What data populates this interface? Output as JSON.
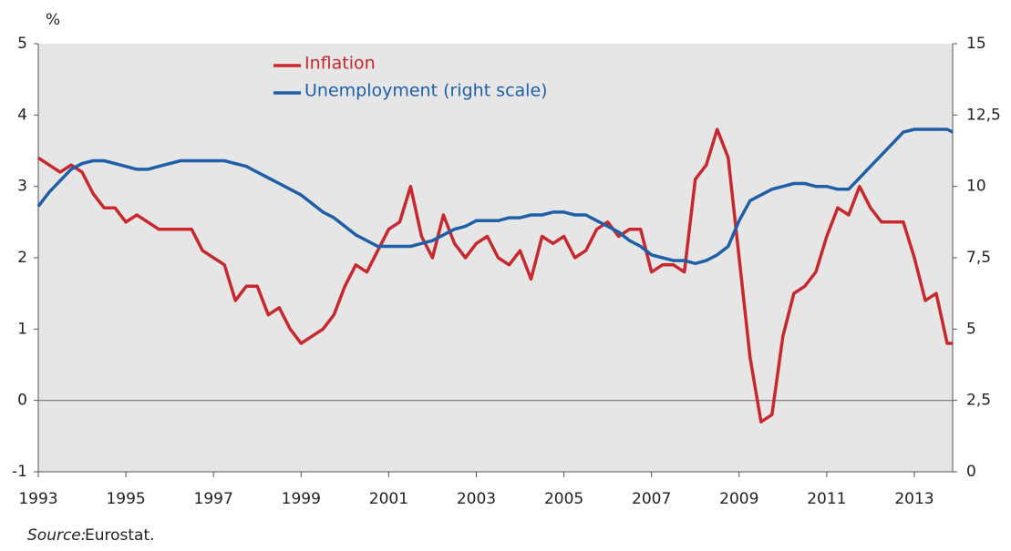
{
  "chart_data": {
    "type": "line",
    "y_unit_label": "%",
    "source_label": "Source:",
    "source": "Eurostat.",
    "x": [
      1993,
      1993.25,
      1993.5,
      1993.75,
      1994,
      1994.25,
      1994.5,
      1994.75,
      1995,
      1995.25,
      1995.5,
      1995.75,
      1996,
      1996.25,
      1996.5,
      1996.75,
      1997,
      1997.25,
      1997.5,
      1997.75,
      1998,
      1998.25,
      1998.5,
      1998.75,
      1999,
      1999.25,
      1999.5,
      1999.75,
      2000,
      2000.25,
      2000.5,
      2000.75,
      2001,
      2001.25,
      2001.5,
      2001.75,
      2002,
      2002.25,
      2002.5,
      2002.75,
      2003,
      2003.25,
      2003.5,
      2003.75,
      2004,
      2004.25,
      2004.5,
      2004.75,
      2005,
      2005.25,
      2005.5,
      2005.75,
      2006,
      2006.25,
      2006.5,
      2006.75,
      2007,
      2007.25,
      2007.5,
      2007.75,
      2008,
      2008.25,
      2008.5,
      2008.75,
      2009,
      2009.25,
      2009.5,
      2009.75,
      2010,
      2010.25,
      2010.5,
      2010.75,
      2011,
      2011.25,
      2011.5,
      2011.75,
      2012,
      2012.25,
      2012.5,
      2012.75,
      2013,
      2013.25,
      2013.5,
      2013.75,
      2013.875
    ],
    "series": [
      {
        "name": "Inflation",
        "color": "#c8282d",
        "values": [
          3.4,
          3.3,
          3.2,
          3.3,
          3.2,
          2.9,
          2.7,
          2.7,
          2.5,
          2.6,
          2.5,
          2.4,
          2.4,
          2.4,
          2.4,
          2.1,
          2.0,
          1.9,
          1.4,
          1.6,
          1.6,
          1.2,
          1.3,
          1.0,
          0.8,
          0.9,
          1.0,
          1.2,
          1.6,
          1.9,
          1.8,
          2.1,
          2.4,
          2.5,
          3.0,
          2.3,
          2.0,
          2.6,
          2.2,
          2.0,
          2.2,
          2.3,
          2.0,
          1.9,
          2.1,
          1.7,
          2.3,
          2.2,
          2.3,
          2.0,
          2.1,
          2.4,
          2.5,
          2.3,
          2.4,
          2.4,
          1.8,
          1.9,
          1.9,
          1.8,
          3.1,
          3.3,
          3.8,
          3.4,
          2.0,
          0.6,
          -0.3,
          -0.2,
          0.9,
          1.5,
          1.6,
          1.8,
          2.3,
          2.7,
          2.6,
          3.0,
          2.7,
          2.5,
          2.5,
          2.5,
          2.0,
          1.4,
          1.5,
          0.8,
          0.8
        ]
      },
      {
        "name": "Unemployment (right scale)",
        "color": "#1f5fa8",
        "axis": "y2",
        "values": [
          9.3,
          9.8,
          10.2,
          10.6,
          10.8,
          10.9,
          10.9,
          10.8,
          10.7,
          10.6,
          10.6,
          10.7,
          10.8,
          10.9,
          10.9,
          10.9,
          10.9,
          10.9,
          10.8,
          10.7,
          10.5,
          10.3,
          10.1,
          9.9,
          9.7,
          9.4,
          9.1,
          8.9,
          8.6,
          8.3,
          8.1,
          7.9,
          7.9,
          7.9,
          7.9,
          8.0,
          8.1,
          8.3,
          8.5,
          8.6,
          8.8,
          8.8,
          8.8,
          8.9,
          8.9,
          9.0,
          9.0,
          9.1,
          9.1,
          9.0,
          9.0,
          8.8,
          8.6,
          8.4,
          8.1,
          7.9,
          7.6,
          7.5,
          7.4,
          7.4,
          7.3,
          7.4,
          7.6,
          7.9,
          8.8,
          9.5,
          9.7,
          9.9,
          10.0,
          10.1,
          10.1,
          10.0,
          10.0,
          9.9,
          9.9,
          10.3,
          10.7,
          11.1,
          11.5,
          11.9,
          12.0,
          12.0,
          12.0,
          12.0,
          11.9
        ]
      }
    ],
    "xlim": [
      1993,
      2013.875
    ],
    "xticks": [
      1993,
      1995,
      1997,
      1999,
      2001,
      2003,
      2005,
      2007,
      2009,
      2011,
      2013
    ],
    "ylim": [
      -1,
      5
    ],
    "yticks": [
      5,
      4,
      3,
      2,
      1,
      0,
      -1
    ],
    "y2lim": [
      0,
      15
    ],
    "y2ticks": [
      15,
      {
        "value": 12.5,
        "label": "12,5"
      },
      10,
      {
        "value": 7.5,
        "label": "7,5"
      },
      5,
      {
        "value": 2.5,
        "label": "2,5"
      },
      0
    ],
    "zero_line": true
  }
}
